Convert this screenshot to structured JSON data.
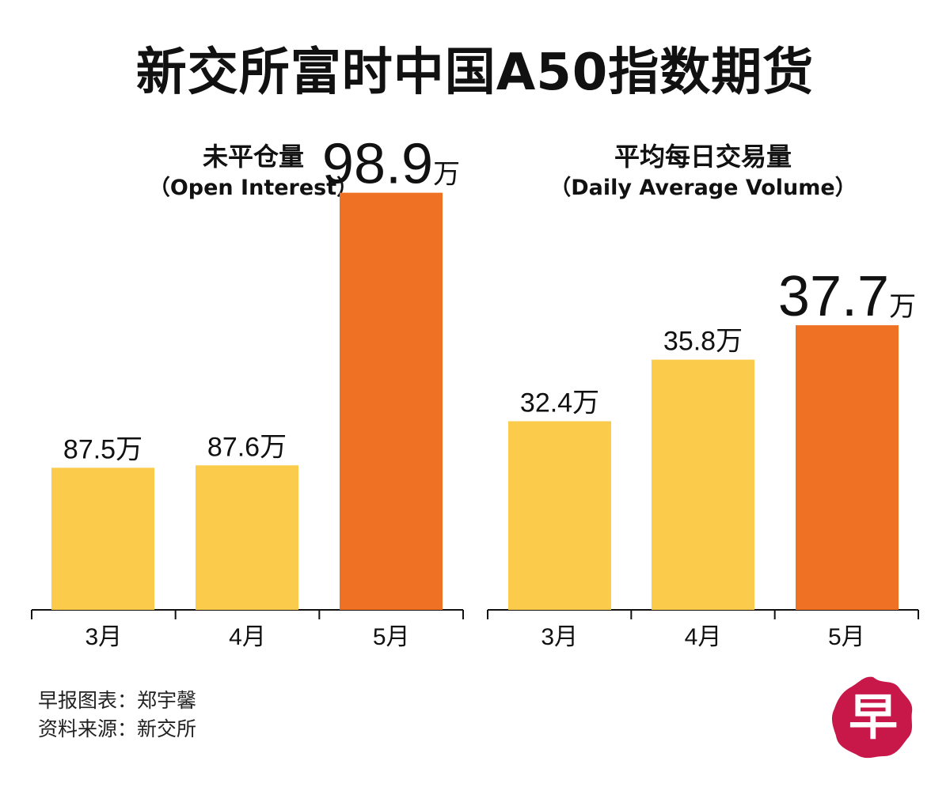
{
  "title": "新交所富时中国A50指数期货",
  "colors": {
    "regular_bar": "#FBCB4B",
    "highlight_bar": "#EF7124",
    "axis": "#111111",
    "logo": "#C8184A"
  },
  "chart_data": [
    {
      "type": "bar",
      "title": "未平仓量",
      "subtitle": "（Open Interest）",
      "categories": [
        "3月",
        "4月",
        "5月"
      ],
      "values": [
        87.5,
        87.6,
        98.9
      ],
      "labels": [
        "87.5",
        "87.6",
        "98.9"
      ],
      "unit": "万",
      "highlight_index": 2
    },
    {
      "type": "bar",
      "title": "平均每日交易量",
      "subtitle": "（Daily Average Volume）",
      "categories": [
        "3月",
        "4月",
        "5月"
      ],
      "values": [
        32.4,
        35.8,
        37.7
      ],
      "labels": [
        "32.4",
        "35.8",
        "37.7"
      ],
      "unit": "万",
      "highlight_index": 2
    }
  ],
  "footer": {
    "credit": "早报图表：郑宇馨",
    "source": "资料来源：新交所"
  },
  "logo": {
    "text": "早",
    "icon": "zaobao-logo-icon"
  }
}
